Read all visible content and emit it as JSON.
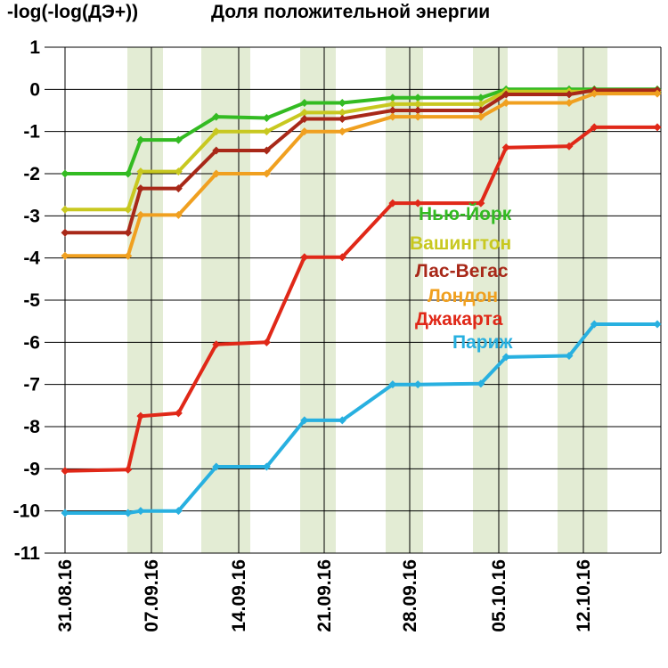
{
  "chart_data": {
    "type": "line",
    "title": "Доля положительной энергии",
    "ylabel": "-log(-log(ДЭ+))",
    "xlabel": "",
    "ylim": [
      -11,
      1
    ],
    "yticks": [
      "1",
      "0",
      "-1",
      "-2",
      "-3",
      "-4",
      "-5",
      "-6",
      "-7",
      "-8",
      "-9",
      "-10",
      "-11"
    ],
    "xtick_labels": [
      "31.08.16",
      "07.09.16",
      "14.09.16",
      "21.09.16",
      "28.09.16",
      "05.10.16",
      "12.10.16"
    ],
    "grid": true,
    "legend_position": "center-right",
    "x": [
      "31.08.16",
      "05.09.16",
      "06.09.16",
      "09.09.16",
      "12.09.16",
      "16.09.16",
      "19.09.16",
      "22.09.16",
      "26.09.16",
      "28.09.16",
      "03.10.16",
      "05.10.16",
      "10.10.16",
      "12.10.16",
      "17.10.16"
    ],
    "series": [
      {
        "name": "Нью-Йорк",
        "color": "#33bb22",
        "values": [
          -2.0,
          -2.0,
          -1.2,
          -1.2,
          -0.65,
          -0.68,
          -0.32,
          -0.32,
          -0.2,
          -0.2,
          -0.2,
          0.0,
          0.0,
          0.0,
          0.0
        ]
      },
      {
        "name": "Вашингтон",
        "color": "#c8c820",
        "values": [
          -2.85,
          -2.85,
          -1.95,
          -1.95,
          -1.0,
          -1.0,
          -0.55,
          -0.55,
          -0.35,
          -0.35,
          -0.35,
          -0.05,
          -0.05,
          -0.05,
          -0.05
        ]
      },
      {
        "name": "Лас-Вегас",
        "color": "#a82818",
        "values": [
          -3.4,
          -3.4,
          -2.35,
          -2.35,
          -1.45,
          -1.45,
          -0.7,
          -0.7,
          -0.5,
          -0.5,
          -0.5,
          -0.12,
          -0.12,
          -0.02,
          -0.02
        ]
      },
      {
        "name": "Лондон",
        "color": "#f0a020",
        "values": [
          -3.95,
          -3.95,
          -2.98,
          -2.98,
          -2.0,
          -2.0,
          -1.0,
          -1.0,
          -0.65,
          -0.65,
          -0.65,
          -0.32,
          -0.32,
          -0.1,
          -0.1
        ]
      },
      {
        "name": "Джакарта",
        "color": "#e02818",
        "values": [
          -9.05,
          -9.02,
          -7.75,
          -7.68,
          -6.05,
          -6.0,
          -3.98,
          -3.98,
          -2.7,
          -2.7,
          -2.7,
          -1.38,
          -1.35,
          -0.9,
          -0.9
        ]
      },
      {
        "name": "Париж",
        "color": "#28b0e0",
        "values": [
          -10.05,
          -10.05,
          -10.0,
          -10.0,
          -8.95,
          -8.95,
          -7.85,
          -7.85,
          -7.0,
          -7.0,
          -6.98,
          -6.35,
          -6.32,
          -5.57,
          -5.57
        ]
      }
    ]
  }
}
